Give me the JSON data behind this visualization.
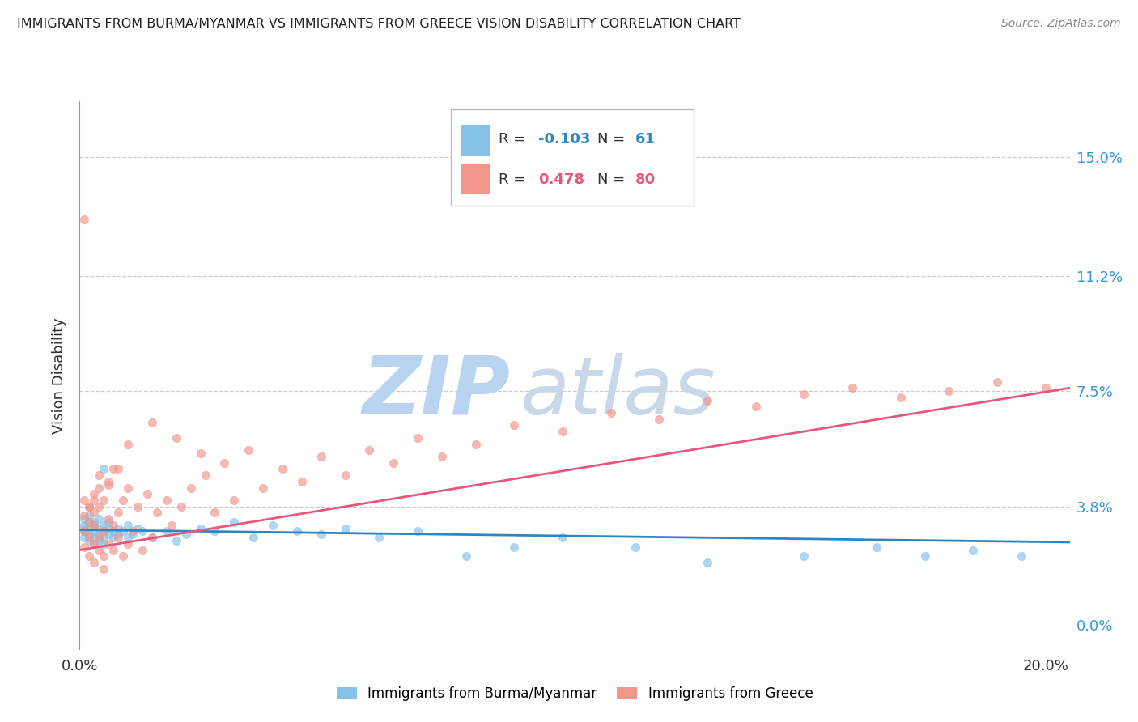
{
  "title": "IMMIGRANTS FROM BURMA/MYANMAR VS IMMIGRANTS FROM GREECE VISION DISABILITY CORRELATION CHART",
  "source": "Source: ZipAtlas.com",
  "ylabel": "Vision Disability",
  "xlim": [
    0.0,
    0.205
  ],
  "ylim": [
    -0.008,
    0.168
  ],
  "ytick_vals": [
    0.0,
    0.038,
    0.075,
    0.112,
    0.15
  ],
  "ytick_labels_right": [
    "0.0%",
    "3.8%",
    "7.5%",
    "11.2%",
    "15.0%"
  ],
  "xtick_vals": [
    0.0,
    0.2
  ],
  "xtick_labels": [
    "0.0%",
    "20.0%"
  ],
  "legend_label1": "Immigrants from Burma/Myanmar",
  "legend_label2": "Immigrants from Greece",
  "R1": -0.103,
  "N1": 61,
  "R2": 0.478,
  "N2": 80,
  "color1": "#85c1e9",
  "color2": "#f1948a",
  "line_color1": "#2e86c1",
  "line_color2": "#e8567a",
  "watermark_color": "#ddeeff",
  "scatter1_x": [
    0.001,
    0.001,
    0.001,
    0.001,
    0.001,
    0.002,
    0.002,
    0.002,
    0.002,
    0.002,
    0.003,
    0.003,
    0.003,
    0.003,
    0.003,
    0.004,
    0.004,
    0.004,
    0.004,
    0.005,
    0.005,
    0.005,
    0.005,
    0.006,
    0.006,
    0.006,
    0.007,
    0.007,
    0.008,
    0.008,
    0.009,
    0.01,
    0.01,
    0.011,
    0.012,
    0.013,
    0.015,
    0.018,
    0.02,
    0.022,
    0.025,
    0.028,
    0.032,
    0.036,
    0.04,
    0.045,
    0.05,
    0.055,
    0.062,
    0.07,
    0.08,
    0.09,
    0.1,
    0.115,
    0.13,
    0.15,
    0.165,
    0.175,
    0.185,
    0.195,
    0.005
  ],
  "scatter1_y": [
    0.03,
    0.032,
    0.028,
    0.031,
    0.034,
    0.029,
    0.031,
    0.033,
    0.027,
    0.035,
    0.03,
    0.028,
    0.032,
    0.026,
    0.033,
    0.029,
    0.031,
    0.027,
    0.034,
    0.03,
    0.028,
    0.032,
    0.026,
    0.029,
    0.031,
    0.033,
    0.028,
    0.03,
    0.029,
    0.031,
    0.03,
    0.028,
    0.032,
    0.029,
    0.031,
    0.03,
    0.028,
    0.03,
    0.027,
    0.029,
    0.031,
    0.03,
    0.033,
    0.028,
    0.032,
    0.03,
    0.029,
    0.031,
    0.028,
    0.03,
    0.022,
    0.025,
    0.028,
    0.025,
    0.02,
    0.022,
    0.025,
    0.022,
    0.024,
    0.022,
    0.05
  ],
  "scatter2_x": [
    0.001,
    0.001,
    0.001,
    0.001,
    0.002,
    0.002,
    0.002,
    0.002,
    0.003,
    0.003,
    0.003,
    0.003,
    0.003,
    0.004,
    0.004,
    0.004,
    0.004,
    0.005,
    0.005,
    0.005,
    0.005,
    0.006,
    0.006,
    0.006,
    0.007,
    0.007,
    0.007,
    0.008,
    0.008,
    0.009,
    0.009,
    0.01,
    0.01,
    0.011,
    0.012,
    0.013,
    0.014,
    0.015,
    0.016,
    0.018,
    0.019,
    0.021,
    0.023,
    0.026,
    0.028,
    0.03,
    0.032,
    0.035,
    0.038,
    0.042,
    0.046,
    0.05,
    0.055,
    0.06,
    0.065,
    0.07,
    0.075,
    0.082,
    0.09,
    0.1,
    0.11,
    0.12,
    0.13,
    0.14,
    0.15,
    0.16,
    0.17,
    0.18,
    0.19,
    0.2,
    0.015,
    0.025,
    0.02,
    0.01,
    0.008,
    0.006,
    0.004,
    0.003,
    0.002,
    0.001
  ],
  "scatter2_y": [
    0.03,
    0.035,
    0.025,
    0.04,
    0.028,
    0.033,
    0.022,
    0.038,
    0.026,
    0.032,
    0.042,
    0.02,
    0.036,
    0.024,
    0.038,
    0.028,
    0.044,
    0.022,
    0.03,
    0.04,
    0.018,
    0.026,
    0.034,
    0.046,
    0.024,
    0.032,
    0.05,
    0.028,
    0.036,
    0.022,
    0.04,
    0.026,
    0.044,
    0.03,
    0.038,
    0.024,
    0.042,
    0.028,
    0.036,
    0.04,
    0.032,
    0.038,
    0.044,
    0.048,
    0.036,
    0.052,
    0.04,
    0.056,
    0.044,
    0.05,
    0.046,
    0.054,
    0.048,
    0.056,
    0.052,
    0.06,
    0.054,
    0.058,
    0.064,
    0.062,
    0.068,
    0.066,
    0.072,
    0.07,
    0.074,
    0.076,
    0.073,
    0.075,
    0.078,
    0.076,
    0.065,
    0.055,
    0.06,
    0.058,
    0.05,
    0.045,
    0.048,
    0.04,
    0.038,
    0.13
  ],
  "line1_x0": 0.0,
  "line1_x1": 0.205,
  "line1_y0": 0.0305,
  "line1_y1": 0.0265,
  "line2_x0": 0.0,
  "line2_x1": 0.205,
  "line2_y0": 0.024,
  "line2_y1": 0.076
}
